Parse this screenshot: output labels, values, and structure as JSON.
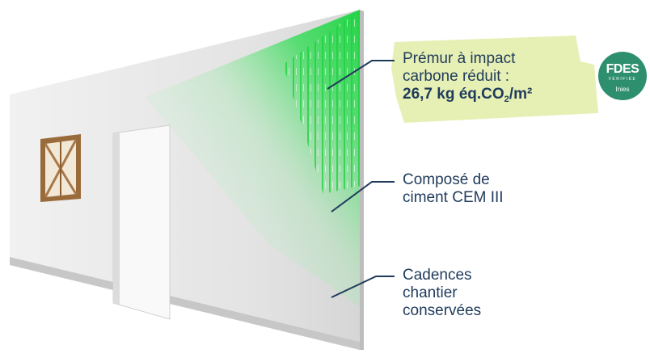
{
  "callouts": [
    {
      "lines": [
        "Prémur à impact",
        "carbone réduit :"
      ],
      "value": "26,7 kg éq.CO",
      "subscript": "2",
      "unit": "/m²"
    },
    {
      "lines": [
        "Composé de",
        "ciment CEM III"
      ]
    },
    {
      "lines": [
        "Cadences",
        "chantier",
        "conservées"
      ]
    }
  ],
  "badge": {
    "title": "FDES",
    "subtitle": "VÉRIFIÉE",
    "label": "Inies"
  },
  "colors": {
    "text": "#1f3b5c",
    "highlight": "#e6efb4",
    "badge": "#2e8f6f",
    "accent": "#36e05a"
  }
}
